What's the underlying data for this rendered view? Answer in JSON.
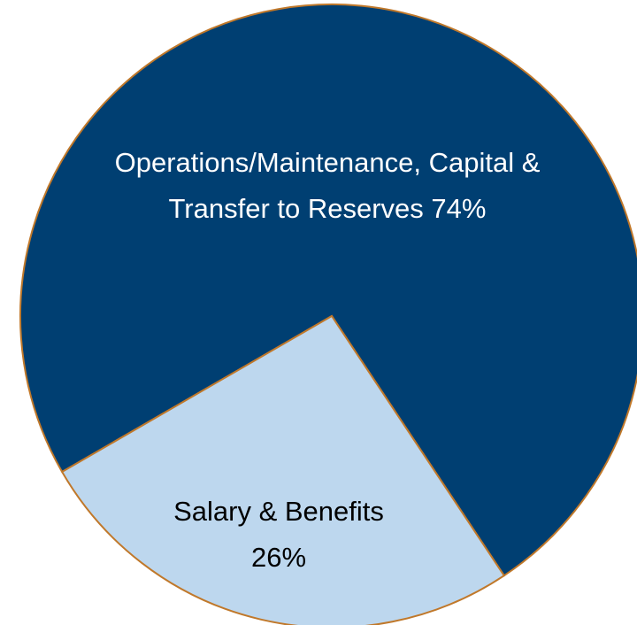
{
  "chart_data": {
    "type": "pie",
    "categories": [
      "Operations/Maintenance, Capital & Transfer to Reserves",
      "Salary & Benefits"
    ],
    "values": [
      74,
      26
    ],
    "value_labels": [
      "74%",
      "26%"
    ],
    "colors": [
      "#003f72",
      "#bdd7ee"
    ],
    "edge_color": "#c0782a"
  }
}
